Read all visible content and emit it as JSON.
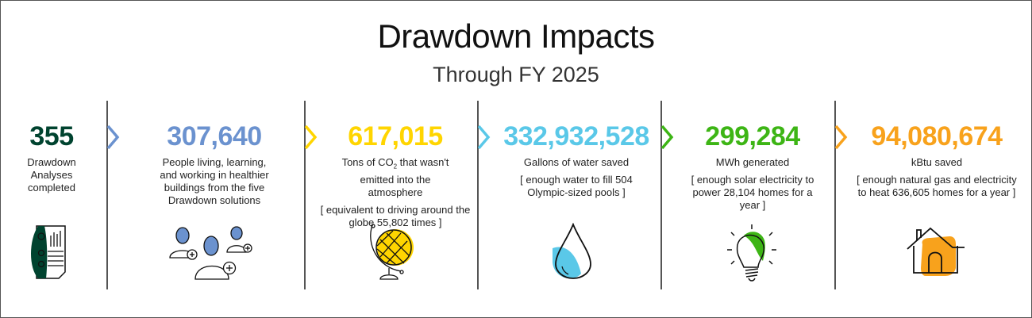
{
  "header": {
    "title": "Drawdown Impacts",
    "subtitle": "Through FY 2025"
  },
  "colors": {
    "analyses": "#00432f",
    "people": "#6b92cf",
    "co2": "#ffd500",
    "water": "#5ac8e8",
    "energy": "#3db515",
    "kbtu": "#f8a21c"
  },
  "stats": [
    {
      "value": "355",
      "desc": "Drawdown Analyses completed",
      "note": "",
      "icon": "analysis-report-icon"
    },
    {
      "value": "307,640",
      "desc": "People living, learning, and working in healthier buildings from the five Drawdown solutions",
      "note": "",
      "icon": "people-add-icon"
    },
    {
      "value": "617,015",
      "desc_pre": "Tons of CO",
      "desc_sub": "2",
      "desc_post": " that wasn't emitted into the atmosphere",
      "note": "[ equivalent to driving around the globe 55,802 times ]",
      "icon": "globe-icon"
    },
    {
      "value": "332,932,528",
      "desc": "Gallons of water saved",
      "note": "[ enough water to fill 504 Olympic-sized pools ]",
      "icon": "water-drop-icon"
    },
    {
      "value": "299,284",
      "desc": "MWh generated",
      "note": "[ enough solar electricity to power 28,104 homes for a year ]",
      "icon": "light-bulb-icon"
    },
    {
      "value": "94,080,674",
      "desc": "kBtu saved",
      "note": "[ enough natural gas and electricity to heat 636,605 homes for a year ]",
      "icon": "house-icon"
    }
  ]
}
